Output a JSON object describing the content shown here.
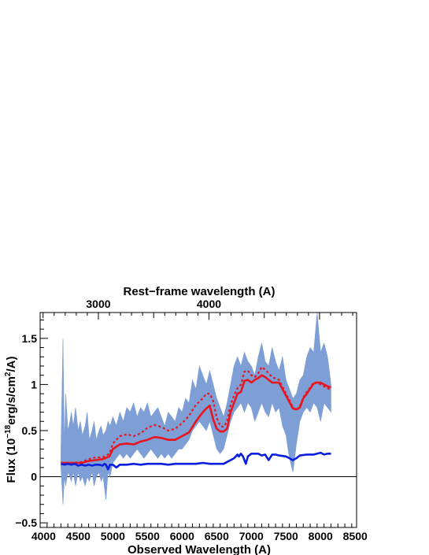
{
  "chart_data": {
    "type": "line",
    "top_axis_title": "Rest−frame wavelength (A)",
    "top_ticks": [
      3000,
      4000
    ],
    "top_tick_labels": [
      "3000",
      "4000"
    ],
    "xlabel": "Observed Wavelength (A)",
    "ylabel_main": "Flux (10",
    "ylabel_exp_18": "−18",
    "ylabel_mid": "erg/s/cm",
    "ylabel_exp_2": "2",
    "ylabel_end": "/A)",
    "xlim": [
      3950,
      8520
    ],
    "ylim": [
      -0.55,
      1.78
    ],
    "xticks": [
      4000,
      4500,
      5000,
      5500,
      6000,
      6500,
      7000,
      7500,
      8000,
      8500
    ],
    "xtick_labels": [
      "4000",
      "4500",
      "5000",
      "5500",
      "6000",
      "6500",
      "7000",
      "7500",
      "8000",
      "8500"
    ],
    "yticks": [
      -0.5,
      0,
      0.5,
      1,
      1.5
    ],
    "ytick_labels": [
      "−0.5",
      "0",
      "0.5",
      "1",
      "1.5"
    ],
    "colors": {
      "spectrum": "#7e9fd6",
      "model_solid": "#e8141e",
      "model_dotted": "#e8141e",
      "blue_model": "#0a1ee0",
      "zero_line": "#000000"
    },
    "series": [
      {
        "style": "fill-noisy",
        "x": [
          4250,
          4280,
          4300,
          4320,
          4350,
          4380,
          4400,
          4430,
          4460,
          4500,
          4530,
          4560,
          4600,
          4630,
          4660,
          4700,
          4730,
          4760,
          4800,
          4830,
          4860,
          4900,
          4930,
          4960,
          5000,
          5050,
          5100,
          5150,
          5200,
          5250,
          5300,
          5350,
          5400,
          5450,
          5500,
          5550,
          5600,
          5650,
          5700,
          5750,
          5800,
          5850,
          5900,
          5950,
          6000,
          6050,
          6100,
          6150,
          6200,
          6250,
          6300,
          6350,
          6400,
          6450,
          6500,
          6550,
          6600,
          6650,
          6700,
          6750,
          6800,
          6850,
          6900,
          6950,
          7000,
          7050,
          7100,
          7150,
          7200,
          7250,
          7300,
          7350,
          7400,
          7450,
          7500,
          7550,
          7600,
          7650,
          7700,
          7750,
          7800,
          7850,
          7900,
          7950,
          8000,
          8050,
          8100,
          8150
        ],
        "upper": [
          0.3,
          1.5,
          0.35,
          0.9,
          0.5,
          0.6,
          0.7,
          0.55,
          0.75,
          0.5,
          0.6,
          0.45,
          0.55,
          0.7,
          0.4,
          0.5,
          0.6,
          0.4,
          0.5,
          0.55,
          0.45,
          0.5,
          0.6,
          0.55,
          0.65,
          0.55,
          0.7,
          0.6,
          0.75,
          0.7,
          0.8,
          0.65,
          0.75,
          0.7,
          0.8,
          0.65,
          0.7,
          0.75,
          0.65,
          0.55,
          0.7,
          0.65,
          0.6,
          0.75,
          0.7,
          0.85,
          0.8,
          1.05,
          0.95,
          1.2,
          1.1,
          1.0,
          1.15,
          1.0,
          0.85,
          0.75,
          0.65,
          0.8,
          1.0,
          1.2,
          1.3,
          1.2,
          1.35,
          1.25,
          1.2,
          1.1,
          1.3,
          1.45,
          1.25,
          1.2,
          1.4,
          1.25,
          1.15,
          1.3,
          1.05,
          0.95,
          0.85,
          0.9,
          1.05,
          1.1,
          1.3,
          1.4,
          1.35,
          1.78,
          1.35,
          1.45,
          1.3,
          1.0
        ],
        "lower": [
          0.1,
          -0.3,
          0.0,
          -0.1,
          0.05,
          0.0,
          -0.05,
          0.05,
          -0.1,
          0.05,
          -0.05,
          0.0,
          -0.1,
          0.0,
          -0.05,
          0.05,
          -0.1,
          0.0,
          0.05,
          -0.05,
          0.0,
          -0.25,
          0.05,
          0.0,
          0.15,
          0.2,
          0.25,
          0.2,
          0.25,
          0.2,
          0.25,
          0.3,
          0.25,
          0.2,
          0.25,
          0.3,
          0.25,
          0.2,
          0.25,
          0.2,
          0.25,
          0.2,
          0.25,
          0.3,
          0.3,
          0.35,
          0.4,
          0.5,
          0.55,
          0.6,
          0.55,
          0.5,
          0.6,
          0.45,
          0.3,
          0.25,
          0.3,
          0.45,
          0.6,
          0.7,
          0.75,
          0.8,
          0.7,
          0.8,
          0.75,
          0.6,
          0.7,
          0.8,
          0.7,
          0.65,
          0.8,
          0.7,
          0.75,
          0.55,
          0.45,
          0.2,
          0.05,
          0.35,
          0.6,
          0.7,
          0.75,
          0.7,
          0.8,
          0.75,
          0.6,
          0.8,
          0.75,
          0.7
        ]
      },
      {
        "style": "solid",
        "x": [
          4250,
          4400,
          4550,
          4650,
          4750,
          4850,
          4950,
          5000,
          5100,
          5200,
          5300,
          5400,
          5500,
          5600,
          5700,
          5800,
          5900,
          6000,
          6100,
          6200,
          6300,
          6350,
          6400,
          6450,
          6500,
          6550,
          6600,
          6650,
          6700,
          6750,
          6800,
          6850,
          6900,
          6950,
          7000,
          7050,
          7100,
          7150,
          7200,
          7300,
          7400,
          7500,
          7550,
          7600,
          7650,
          7700,
          7750,
          7800,
          7900,
          7950,
          8000,
          8100,
          8150
        ],
        "y": [
          0.15,
          0.15,
          0.15,
          0.17,
          0.18,
          0.19,
          0.22,
          0.3,
          0.35,
          0.36,
          0.35,
          0.38,
          0.4,
          0.43,
          0.42,
          0.4,
          0.4,
          0.44,
          0.48,
          0.6,
          0.7,
          0.74,
          0.77,
          0.62,
          0.52,
          0.49,
          0.49,
          0.52,
          0.7,
          0.8,
          0.9,
          0.92,
          1.04,
          1.05,
          1.02,
          1.05,
          1.07,
          1.1,
          1.08,
          1.02,
          1.02,
          0.88,
          0.81,
          0.74,
          0.73,
          0.75,
          0.85,
          0.9,
          1.01,
          1.02,
          1.02,
          0.98,
          0.97
        ]
      },
      {
        "style": "dotted",
        "x": [
          4250,
          4400,
          4550,
          4650,
          4750,
          4850,
          4950,
          5000,
          5100,
          5200,
          5300,
          5400,
          5500,
          5600,
          5700,
          5800,
          5900,
          6000,
          6100,
          6200,
          6300,
          6350,
          6400,
          6450,
          6500,
          6550,
          6600,
          6650,
          6700,
          6750,
          6800,
          6850,
          6900,
          6950,
          7000,
          7050,
          7100,
          7150,
          7200,
          7300,
          7400,
          7500,
          7550,
          7600,
          7650,
          7700,
          7750,
          7800,
          7900,
          7950,
          8000,
          8100,
          8150
        ],
        "y": [
          0.15,
          0.15,
          0.16,
          0.19,
          0.21,
          0.21,
          0.25,
          0.36,
          0.44,
          0.46,
          0.44,
          0.47,
          0.53,
          0.56,
          0.54,
          0.5,
          0.52,
          0.58,
          0.66,
          0.78,
          0.85,
          0.9,
          0.9,
          0.82,
          0.64,
          0.55,
          0.54,
          0.6,
          0.78,
          0.88,
          0.96,
          1.0,
          1.14,
          1.15,
          1.1,
          1.08,
          1.12,
          1.19,
          1.16,
          1.08,
          1.05,
          0.9,
          0.83,
          0.75,
          0.72,
          0.76,
          0.86,
          0.92,
          1.02,
          1.02,
          1.0,
          0.96,
          0.94
        ]
      },
      {
        "style": "blue",
        "x": [
          4250,
          4300,
          4350,
          4400,
          4450,
          4500,
          4550,
          4600,
          4650,
          4700,
          4750,
          4800,
          4850,
          4880,
          4900,
          4930,
          4960,
          5000,
          5050,
          5100,
          5200,
          5300,
          5400,
          5500,
          5600,
          5700,
          5800,
          5900,
          6000,
          6100,
          6200,
          6300,
          6400,
          6500,
          6600,
          6650,
          6700,
          6750,
          6800,
          6820,
          6850,
          6880,
          6900,
          6920,
          6950,
          7000,
          7050,
          7100,
          7150,
          7200,
          7250,
          7300,
          7350,
          7400,
          7500,
          7550,
          7600,
          7650,
          7700,
          7800,
          7900,
          7950,
          8000,
          8050,
          8100,
          8150
        ],
        "y": [
          0.14,
          0.13,
          0.14,
          0.13,
          0.14,
          0.12,
          0.13,
          0.12,
          0.13,
          0.12,
          0.13,
          0.13,
          0.12,
          0.14,
          0.13,
          0.08,
          0.13,
          0.13,
          0.1,
          0.13,
          0.13,
          0.14,
          0.13,
          0.14,
          0.14,
          0.14,
          0.13,
          0.14,
          0.14,
          0.14,
          0.14,
          0.15,
          0.14,
          0.14,
          0.14,
          0.16,
          0.18,
          0.2,
          0.24,
          0.22,
          0.25,
          0.22,
          0.18,
          0.14,
          0.22,
          0.25,
          0.25,
          0.25,
          0.23,
          0.24,
          0.18,
          0.24,
          0.24,
          0.23,
          0.22,
          0.2,
          0.18,
          0.2,
          0.23,
          0.24,
          0.24,
          0.25,
          0.26,
          0.24,
          0.25,
          0.25
        ]
      }
    ]
  }
}
